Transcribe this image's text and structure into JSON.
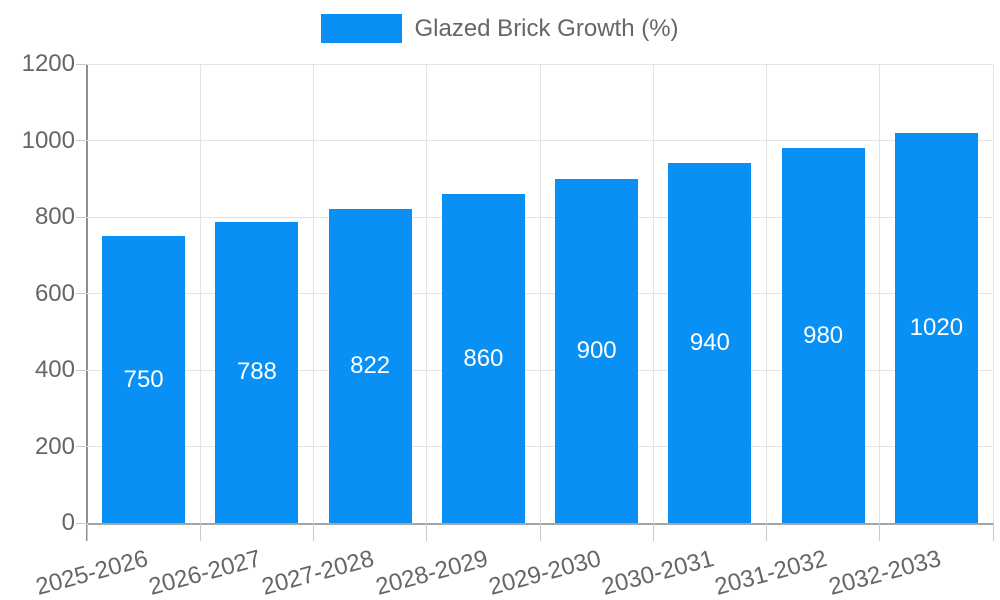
{
  "legend": {
    "label": "Glazed Brick Growth (%)",
    "swatch_color": "#0890f4"
  },
  "chart_data": {
    "type": "bar",
    "title": "",
    "categories": [
      "2025-2026",
      "2026-2027",
      "2027-2028",
      "2028-2029",
      "2029-2030",
      "2030-2031",
      "2031-2032",
      "2032-2033"
    ],
    "series": [
      {
        "name": "Glazed Brick Growth (%)",
        "values": [
          750,
          788,
          822,
          860,
          900,
          940,
          980,
          1020
        ]
      }
    ],
    "values": [
      750,
      788,
      822,
      860,
      900,
      940,
      980,
      1020
    ],
    "value_labels": [
      "750",
      "788",
      "822",
      "860",
      "900",
      "940",
      "980",
      "1020"
    ],
    "xlabel": "",
    "ylabel": "",
    "ylim": [
      0,
      1200
    ],
    "yticks": [
      0,
      200,
      400,
      600,
      800,
      1000,
      1200
    ],
    "grid": true,
    "legend_position": "top",
    "bar_color": "#0890f4",
    "value_label_color": "#ffffff"
  },
  "colors": {
    "background": "#ffffff",
    "grid_line": "#e3e3e3",
    "axis_line": "#8f8f8f",
    "tick_label": "#666666",
    "bar": "#0890f4",
    "bar_value_text": "#ffffff"
  }
}
